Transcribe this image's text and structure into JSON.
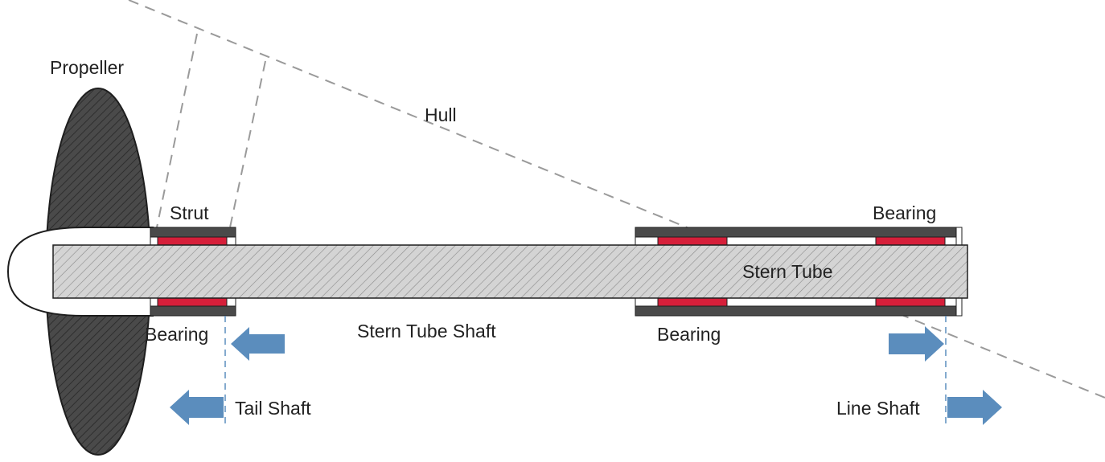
{
  "labels": {
    "propeller": "Propeller",
    "hull": "Hull",
    "strut": "Strut",
    "bearing_top_right": "Bearing",
    "stern_tube": "Stern Tube",
    "bearing_left": "Bearing",
    "stern_tube_shaft": "Stern Tube Shaft",
    "bearing_bottom_middle": "Bearing",
    "tail_shaft": "Tail Shaft",
    "line_shaft": "Line Shaft"
  },
  "colors": {
    "housing": "#4a4a4a",
    "bearing_pad": "#d61f3a",
    "shaft_fill": "#d4d4d4",
    "shaft_hatch": "#7a7a7a",
    "propeller": "#4a4a4a",
    "arrow": "#5b8dbd",
    "dashed_line": "#9a9a9a",
    "divider_line": "#5b8dbd"
  },
  "icons": {
    "arrow_left": "arrow-left-icon",
    "arrow_right": "arrow-right-icon"
  }
}
